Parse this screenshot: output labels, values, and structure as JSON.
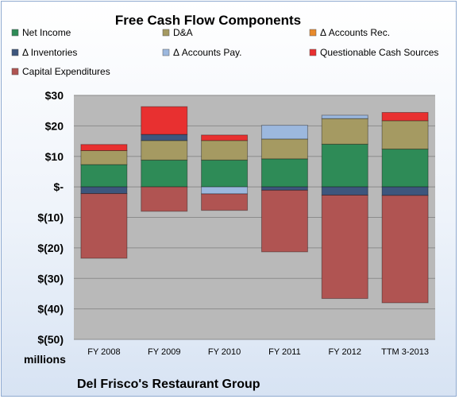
{
  "chart_data": {
    "type": "bar",
    "stacked": true,
    "title": "Free Cash Flow Components",
    "unit_label": "millions",
    "footer": "Del Frisco's Restaurant Group",
    "categories": [
      "FY 2008",
      "FY 2009",
      "FY 2010",
      "FY 2011",
      "FY 2012",
      "TTM 3-2013"
    ],
    "ylim": [
      -50,
      30
    ],
    "yticks": [
      30,
      20,
      10,
      0,
      -10,
      -20,
      -30,
      -40,
      -50
    ],
    "ytick_labels": [
      "$30",
      "$20",
      "$10",
      "$-",
      "$(10)",
      "$(20)",
      "$(30)",
      "$(40)",
      "$(50)"
    ],
    "grid": true,
    "legend_position": "top",
    "series": [
      {
        "name": "Net Income",
        "color": "#2e8b57",
        "values": [
          7.3,
          8.8,
          8.8,
          9.2,
          14.0,
          12.4
        ]
      },
      {
        "name": "D&A",
        "color": "#a59a62",
        "values": [
          4.6,
          6.4,
          6.4,
          6.5,
          8.4,
          9.3
        ]
      },
      {
        "name": "Δ Accounts Rec.",
        "color": "#e88a2c",
        "values": [
          0,
          0,
          0,
          0,
          0,
          0
        ]
      },
      {
        "name": "Δ Inventories",
        "color": "#3d567d",
        "values": [
          -2.2,
          2.0,
          0,
          -1.1,
          -2.7,
          -2.8
        ]
      },
      {
        "name": "Δ Accounts Pay.",
        "color": "#9cb8de",
        "values": [
          0,
          0,
          -2.3,
          4.5,
          1.1,
          0
        ]
      },
      {
        "name": "Questionable Cash Sources",
        "color": "#e83030",
        "values": [
          2.0,
          9.1,
          1.8,
          0,
          0,
          2.7
        ]
      },
      {
        "name": "Capital Expenditures",
        "color": "#b05452",
        "values": [
          -21.2,
          -8.0,
          -5.4,
          -20.2,
          -33.9,
          -35.2
        ]
      }
    ]
  }
}
